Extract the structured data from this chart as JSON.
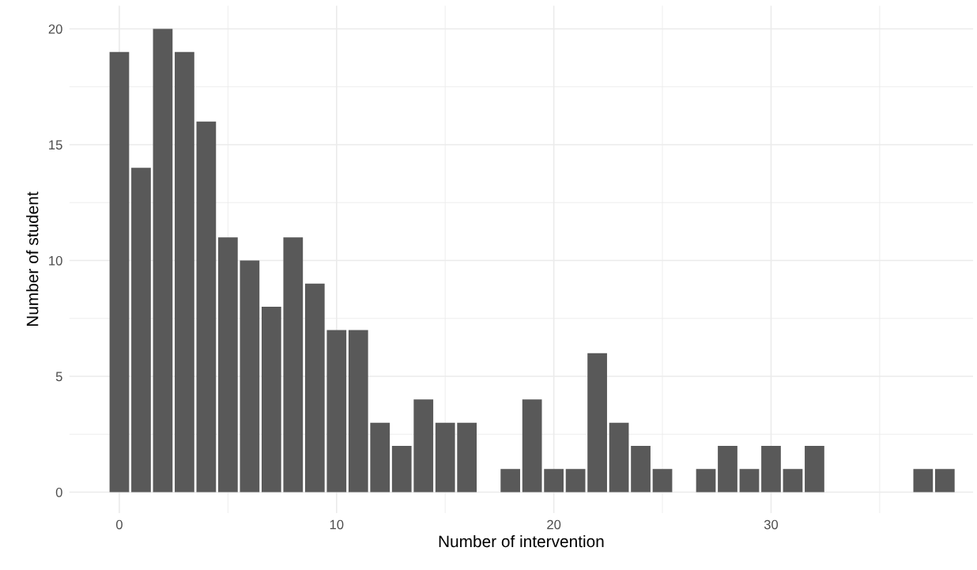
{
  "chart_data": {
    "type": "bar",
    "xlabel": "Number of intervention",
    "ylabel": "Number of student",
    "x": [
      0,
      1,
      2,
      3,
      4,
      5,
      6,
      7,
      8,
      9,
      10,
      11,
      12,
      13,
      14,
      15,
      16,
      18,
      19,
      20,
      21,
      22,
      23,
      24,
      25,
      27,
      28,
      29,
      30,
      31,
      32,
      37,
      38
    ],
    "values": [
      19,
      14,
      20,
      19,
      16,
      11,
      10,
      8,
      11,
      9,
      7,
      7,
      3,
      2,
      4,
      3,
      3,
      1,
      4,
      1,
      1,
      6,
      3,
      2,
      1,
      1,
      2,
      1,
      2,
      1,
      2,
      1,
      1
    ],
    "color": "#595959",
    "xlim": [
      -2.3,
      39.3
    ],
    "xticks": [
      0,
      10,
      20,
      30
    ],
    "ylim": [
      -0.9,
      21
    ],
    "yticks": [
      0,
      5,
      10,
      15,
      20
    ],
    "grid": true
  }
}
